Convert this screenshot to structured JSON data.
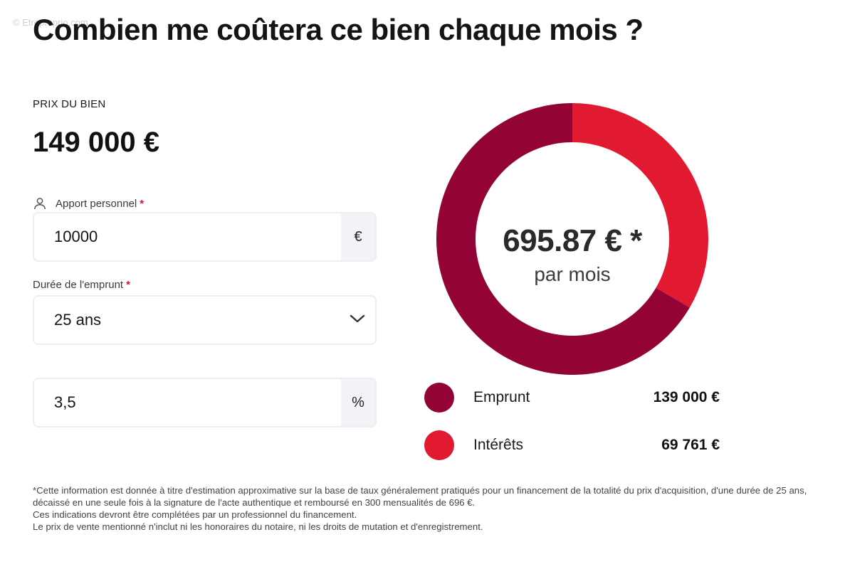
{
  "watermark": "© Etreproprio.com",
  "title": "Combien me coûtera ce bien chaque mois ?",
  "price": {
    "label": "PRIX DU BIEN",
    "value": "149 000 €"
  },
  "form": {
    "apport": {
      "label": "Apport personnel",
      "required_mark": "*",
      "icon": "person-icon",
      "value": "10000",
      "suffix": "€"
    },
    "duree": {
      "label": "Durée de l'emprunt",
      "required_mark": "*",
      "value": "25 ans",
      "icon": "chevron-down-icon"
    },
    "taux": {
      "value": "3,5",
      "suffix": "%"
    }
  },
  "summary": {
    "monthly_amount": "695.87 € *",
    "monthly_sub": "par mois"
  },
  "chart_data": {
    "type": "pie",
    "categories": [
      "Emprunt",
      "Intérêts"
    ],
    "values": [
      139000,
      69761
    ],
    "colors": [
      "#930336",
      "#e11931"
    ],
    "display_values": [
      "139 000 €",
      "69 761 €"
    ],
    "legend_position": "bottom"
  },
  "footnote": {
    "line1": "*Cette information est donnée à titre d'estimation approximative sur la base de taux généralement pratiqués pour un financement de la totalité du prix d'acquisition, d'une durée de 25 ans, décaissé en une seule fois à la signature de l'acte authentique et remboursé en 300 mensualités de 696 €.",
    "line2": "Ces indications devront être complétées par un professionnel du financement.",
    "line3": "Le prix de vente mentionné n'inclut ni les honoraires du notaire, ni les droits de mutation et d'enregistrement."
  }
}
